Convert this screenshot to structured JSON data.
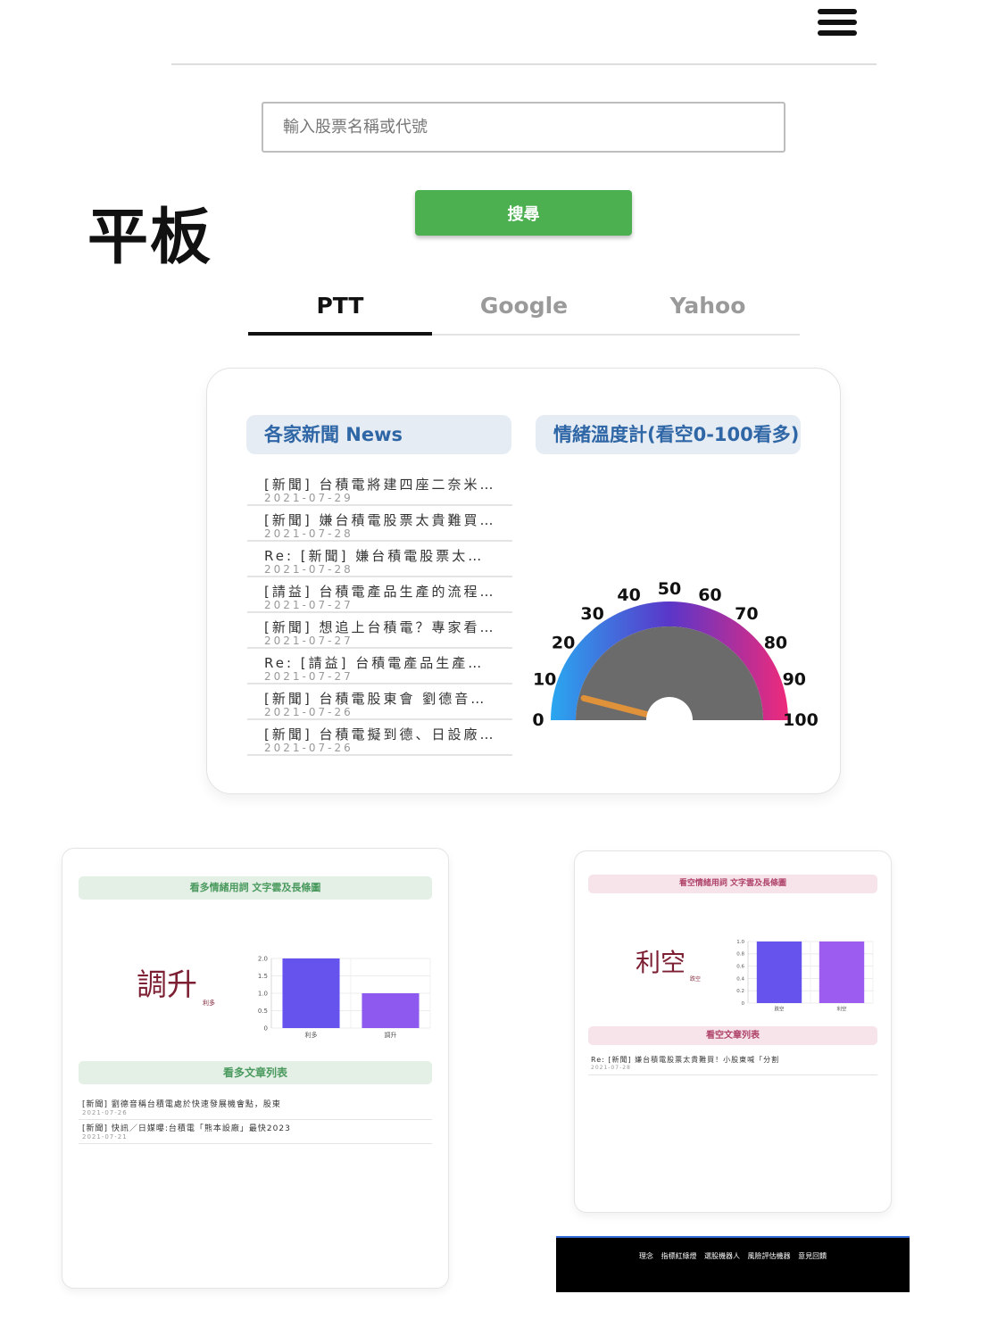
{
  "header": {
    "menu_icon": "hamburger-menu-icon"
  },
  "search": {
    "placeholder": "輸入股票名稱或代號",
    "button_label": "搜尋"
  },
  "device_label": "平板",
  "tabs": [
    {
      "label": "PTT",
      "active": true
    },
    {
      "label": "Google",
      "active": false
    },
    {
      "label": "Yahoo",
      "active": false
    }
  ],
  "news_panel": {
    "title": "各家新聞 News",
    "items": [
      {
        "title": "[新聞] 台積電將建四座二奈米…",
        "date": "2021-07-29"
      },
      {
        "title": "[新聞] 嫌台積電股票太貴難買…",
        "date": "2021-07-28"
      },
      {
        "title": "Re: [新聞] 嫌台積電股票太…",
        "date": "2021-07-28"
      },
      {
        "title": "[請益] 台積電產品生產的流程…",
        "date": "2021-07-27"
      },
      {
        "title": "[新聞] 想追上台積電？專家看…",
        "date": "2021-07-27"
      },
      {
        "title": "Re: [請益] 台積電產品生產…",
        "date": "2021-07-27"
      },
      {
        "title": "[新聞] 台積電股東會 劉德音…",
        "date": "2021-07-26"
      },
      {
        "title": "[新聞] 台積電擬到德、日設廠…",
        "date": "2021-07-26"
      }
    ]
  },
  "gauge_panel": {
    "title": "情緒溫度計(看空0-100看多)",
    "ticks": [
      "0",
      "10",
      "20",
      "30",
      "40",
      "50",
      "60",
      "70",
      "80",
      "90",
      "100"
    ],
    "value": 8,
    "colors": {
      "low": "#2aa7f0",
      "mid": "#5a36c9",
      "high": "#ef2a7a",
      "needle": "#e0923a",
      "dial": "#6b6b6b"
    }
  },
  "bullish_card": {
    "wordcloud_title": "看多情緒用詞 文字雲及長條圖",
    "cloud_big_word": "調升",
    "cloud_small_word": "利多",
    "chart_data": {
      "type": "bar",
      "categories": [
        "利多",
        "調升"
      ],
      "values": [
        2.0,
        1.0
      ],
      "y_ticks": [
        "0",
        "0.5",
        "1.0",
        "1.5",
        "2.0"
      ],
      "ylim": [
        0,
        2.0
      ],
      "colors": [
        "#6653ee",
        "#8e59ee"
      ]
    },
    "list_title": "看多文章列表",
    "articles": [
      {
        "title": "[新聞] 劉德音稱台積電處於快速發展機會點，股東",
        "date": "2021-07-26"
      },
      {
        "title": "[新聞] 快訊／日媒曝:台積電「熊本設廠」最快2023",
        "date": "2021-07-21"
      }
    ]
  },
  "bearish_card": {
    "wordcloud_title": "看空情緒用詞 文字雲及長條圖",
    "cloud_big_word": "利空",
    "cloud_small_word": "跌空",
    "chart_data": {
      "type": "bar",
      "categories": [
        "跌空",
        "利空"
      ],
      "values": [
        1.0,
        1.0
      ],
      "y_ticks": [
        "0",
        "0.2",
        "0.4",
        "0.6",
        "0.8",
        "1.0"
      ],
      "ylim": [
        0,
        1.0
      ],
      "colors": [
        "#6653ee",
        "#9c5cf0"
      ]
    },
    "list_title": "看空文章列表",
    "articles": [
      {
        "title": "Re: [新聞] 嫌台積電股票太貴難買！小股東喊「分割",
        "date": "2021-07-28"
      }
    ]
  },
  "footer": {
    "links": [
      "理念",
      "指標紅綠燈",
      "選股機器人",
      "風險評估機器",
      "意見回饋"
    ]
  }
}
